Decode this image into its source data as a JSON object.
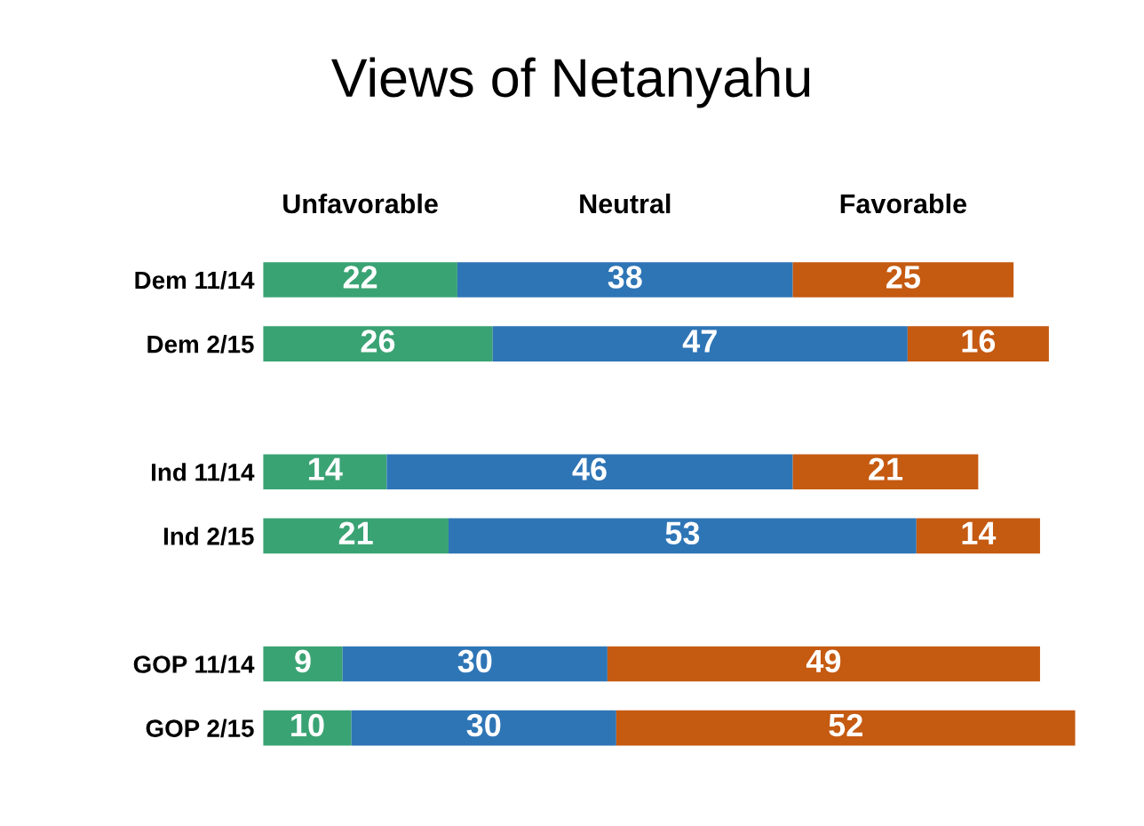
{
  "chart_data": {
    "type": "bar",
    "title": "Views of Netanyahu",
    "orientation": "horizontal",
    "stacked": true,
    "data_labels": true,
    "legend": "top",
    "categories": [
      "Dem 11/14",
      "Dem 2/15",
      null,
      "Ind 11/14",
      "Ind 2/15",
      null,
      "GOP 11/14",
      "GOP 2/15"
    ],
    "series": [
      {
        "name": "Unfavorable",
        "color": "#3aa374",
        "values": [
          22,
          26,
          null,
          14,
          21,
          null,
          9,
          10
        ]
      },
      {
        "name": "Neutral",
        "color": "#2e75b6",
        "values": [
          38,
          47,
          null,
          46,
          53,
          null,
          30,
          30
        ]
      },
      {
        "name": "Favorable",
        "color": "#c55a11",
        "values": [
          25,
          16,
          null,
          21,
          14,
          null,
          49,
          52
        ]
      }
    ]
  }
}
